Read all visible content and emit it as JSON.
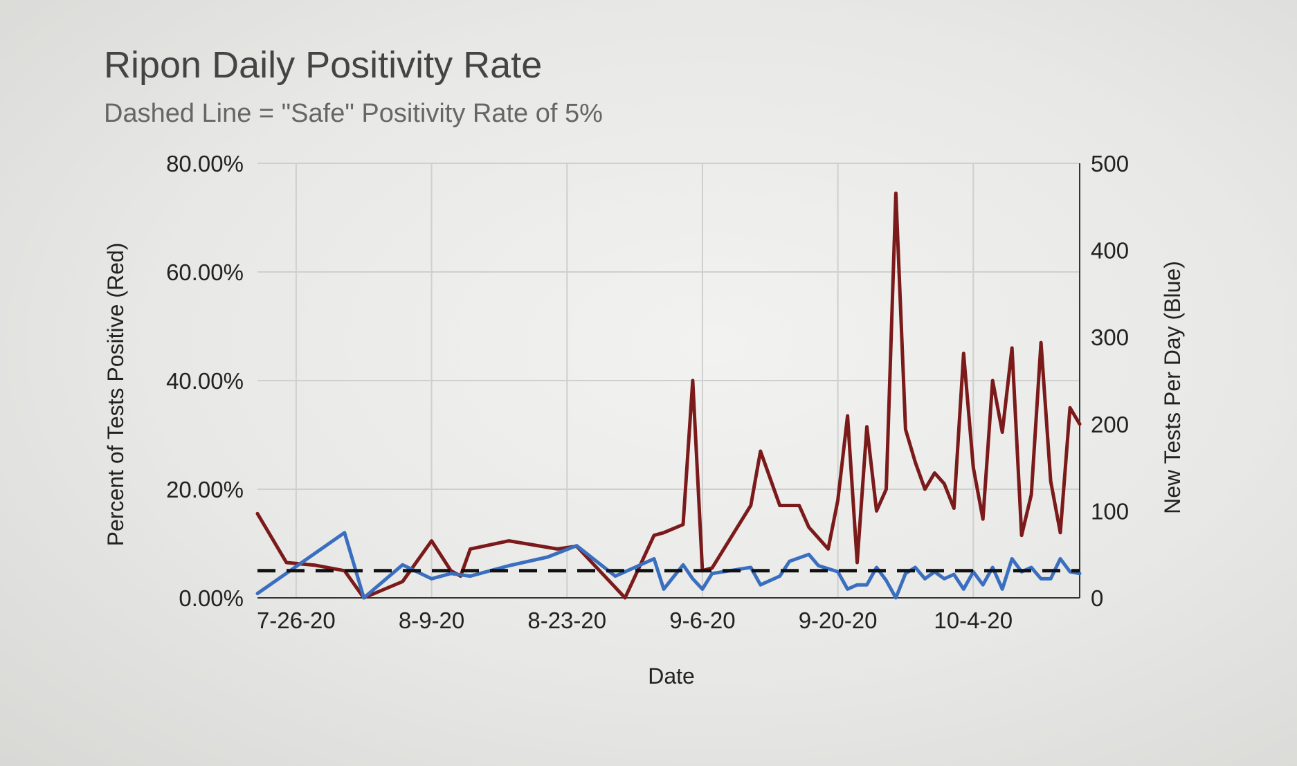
{
  "chart_data": {
    "type": "line",
    "title": "Ripon Daily Positivity Rate",
    "subtitle": "Dashed Line = \"Safe\" Positivity Rate of 5%",
    "xlabel": "Date",
    "ylabel_left": "Percent of Tests Positive (Red)",
    "ylabel_right": "New Tests Per Day (Blue)",
    "x_ticks": [
      "7-26-20",
      "8-9-20",
      "8-23-20",
      "9-6-20",
      "9-20-20",
      "10-4-20"
    ],
    "x_tick_days": [
      4,
      18,
      32,
      46,
      60,
      74
    ],
    "x_range_days": [
      0,
      85
    ],
    "y_left_ticks": [
      "0.00%",
      "20.00%",
      "40.00%",
      "60.00%",
      "80.00%"
    ],
    "y_left_tick_values": [
      0,
      20,
      40,
      60,
      80
    ],
    "ylim_left": [
      0,
      80
    ],
    "y_right_ticks": [
      "0",
      "100",
      "200",
      "300",
      "400",
      "500"
    ],
    "y_right_tick_values": [
      0,
      100,
      200,
      300,
      400,
      500
    ],
    "ylim_right": [
      0,
      500
    ],
    "grid": true,
    "series": [
      {
        "axis": "left",
        "color": "#7b1a1a",
        "x": [
          0,
          3,
          6,
          9,
          11,
          15,
          18,
          20,
          21,
          22,
          26,
          31,
          33,
          38,
          41,
          42,
          44,
          45,
          46,
          47,
          51,
          52,
          54,
          56,
          57,
          58,
          59,
          60,
          61,
          62,
          63,
          64,
          65,
          66,
          67,
          68,
          69,
          70,
          71,
          72,
          73,
          74,
          75,
          76,
          77,
          78,
          79,
          80,
          81,
          82,
          83,
          84,
          85
        ],
        "values": [
          15.5,
          6.5,
          6,
          5,
          0,
          3,
          10.5,
          5,
          4,
          9,
          10.5,
          9,
          9.5,
          0,
          11.5,
          12,
          13.5,
          40,
          5,
          5.5,
          17,
          27,
          17,
          17,
          13,
          11,
          9,
          18,
          33.5,
          6.5,
          31.5,
          16,
          20,
          74.5,
          31,
          25,
          20,
          23,
          21,
          16.5,
          45,
          24,
          14.5,
          40,
          30.5,
          46,
          11.5,
          19,
          47,
          21.5,
          12,
          35,
          32
        ]
      },
      {
        "axis": "right",
        "color": "#3a6fbf",
        "x": [
          0,
          9,
          11,
          15,
          18,
          20,
          22,
          26,
          30,
          33,
          37,
          41,
          42,
          44,
          45,
          46,
          47,
          51,
          52,
          54,
          55,
          57,
          58,
          60,
          61,
          62,
          63,
          64,
          65,
          66,
          67,
          68,
          69,
          70,
          71,
          72,
          73,
          74,
          75,
          76,
          77,
          78,
          79,
          80,
          81,
          82,
          83,
          84,
          85
        ],
        "values": [
          5,
          75,
          0,
          38,
          22,
          28,
          25,
          37,
          47,
          60,
          25,
          45,
          10,
          38,
          22,
          10,
          28,
          35,
          15,
          25,
          42,
          50,
          37,
          30,
          10,
          15,
          15,
          35,
          20,
          0,
          28,
          35,
          22,
          30,
          22,
          27,
          10,
          30,
          15,
          35,
          10,
          45,
          30,
          35,
          22,
          22,
          45,
          30,
          28
        ]
      }
    ],
    "reference_line": {
      "axis": "left",
      "value": 5,
      "style": "dashed",
      "color": "#111111"
    }
  }
}
